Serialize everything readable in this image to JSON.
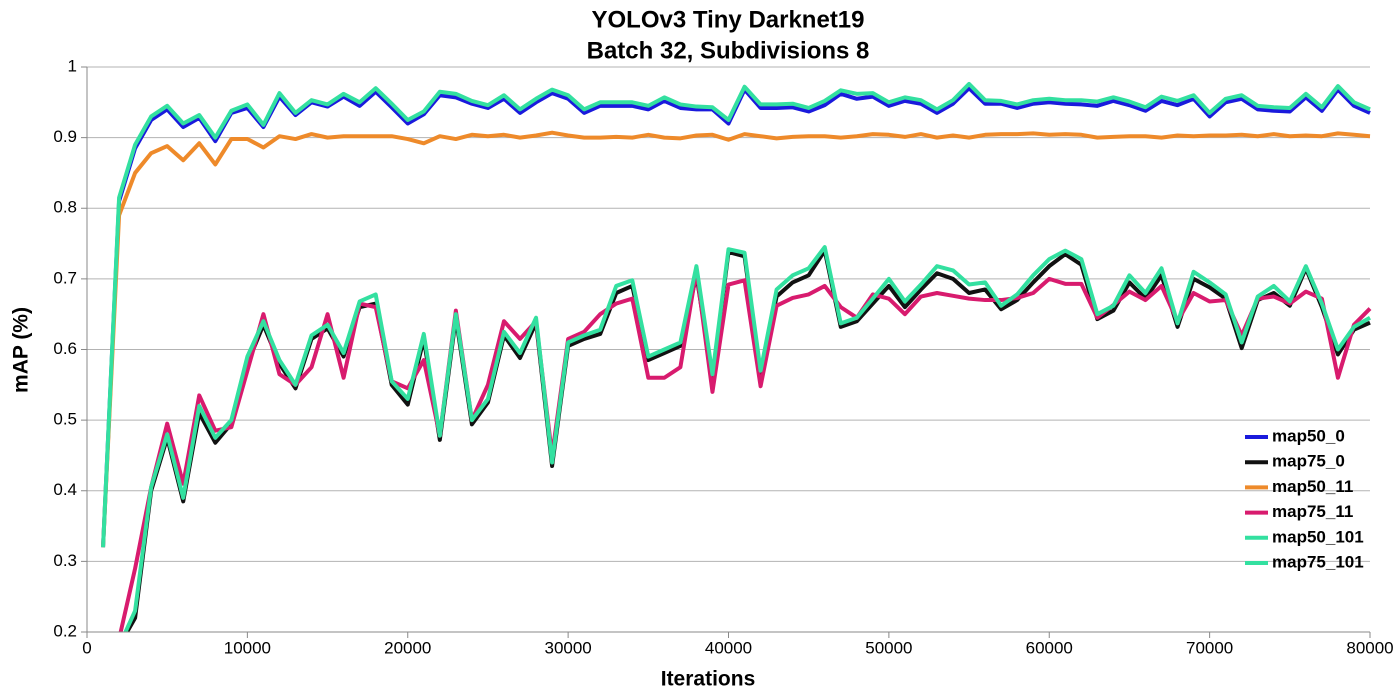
{
  "chart_data": {
    "type": "line",
    "title": "YOLOv3 Tiny Darknet19",
    "subtitle": "Batch 32, Subdivisions 8",
    "x_label": "Iterations",
    "y_label": "mAP (%)",
    "xlim": [
      0,
      80000
    ],
    "xticks": [
      0,
      10000,
      20000,
      30000,
      40000,
      50000,
      60000,
      70000,
      80000
    ],
    "ylim": [
      0.2,
      1
    ],
    "yticks": [
      0.2,
      0.3,
      0.4,
      0.5,
      0.6,
      0.7,
      0.8,
      0.9,
      1
    ],
    "grid": true,
    "legend": "right",
    "x": [
      1000,
      2000,
      3000,
      4000,
      5000,
      6000,
      7000,
      8000,
      9000,
      10000,
      11000,
      12000,
      13000,
      14000,
      15000,
      16000,
      17000,
      18000,
      19000,
      20000,
      21000,
      22000,
      23000,
      24000,
      25000,
      26000,
      27000,
      28000,
      29000,
      30000,
      31000,
      32000,
      33000,
      34000,
      35000,
      36000,
      37000,
      38000,
      39000,
      40000,
      41000,
      42000,
      43000,
      44000,
      45000,
      46000,
      47000,
      48000,
      49000,
      50000,
      51000,
      52000,
      53000,
      54000,
      55000,
      56000,
      57000,
      58000,
      59000,
      60000,
      61000,
      62000,
      63000,
      64000,
      65000,
      66000,
      67000,
      68000,
      69000,
      70000,
      71000,
      72000,
      73000,
      74000,
      75000,
      76000,
      77000,
      78000,
      79000,
      80000
    ],
    "series": [
      {
        "name": "map50_0",
        "color": "#1a1adc",
        "values": [
          0.32,
          0.81,
          0.885,
          0.925,
          0.94,
          0.915,
          0.928,
          0.895,
          0.935,
          0.942,
          0.915,
          0.958,
          0.932,
          0.95,
          0.944,
          0.958,
          0.945,
          0.965,
          0.943,
          0.92,
          0.933,
          0.96,
          0.957,
          0.948,
          0.942,
          0.955,
          0.935,
          0.95,
          0.963,
          0.955,
          0.935,
          0.945,
          0.945,
          0.945,
          0.94,
          0.952,
          0.942,
          0.94,
          0.94,
          0.92,
          0.968,
          0.942,
          0.942,
          0.943,
          0.937,
          0.946,
          0.962,
          0.955,
          0.958,
          0.945,
          0.952,
          0.948,
          0.935,
          0.948,
          0.97,
          0.948,
          0.948,
          0.942,
          0.948,
          0.95,
          0.948,
          0.947,
          0.945,
          0.952,
          0.946,
          0.938,
          0.952,
          0.946,
          0.955,
          0.93,
          0.95,
          0.955,
          0.94,
          0.938,
          0.937,
          0.957,
          0.938,
          0.968,
          0.945,
          0.935
        ]
      },
      {
        "name": "map75_0",
        "color": "#111111",
        "values": [
          null,
          0.18,
          0.22,
          0.4,
          0.475,
          0.385,
          0.51,
          0.468,
          0.495,
          0.58,
          0.635,
          0.58,
          0.545,
          0.615,
          0.63,
          0.59,
          0.66,
          0.665,
          0.55,
          0.522,
          0.615,
          0.472,
          0.645,
          0.494,
          0.525,
          0.62,
          0.588,
          0.638,
          0.435,
          0.605,
          0.615,
          0.622,
          0.68,
          0.69,
          0.585,
          0.595,
          0.605,
          0.705,
          0.56,
          0.738,
          0.732,
          0.565,
          0.675,
          0.695,
          0.705,
          0.74,
          0.632,
          0.64,
          0.665,
          0.69,
          0.66,
          0.685,
          0.708,
          0.7,
          0.68,
          0.685,
          0.657,
          0.67,
          0.695,
          0.718,
          0.735,
          0.72,
          0.643,
          0.655,
          0.695,
          0.672,
          0.705,
          0.632,
          0.7,
          0.688,
          0.672,
          0.602,
          0.67,
          0.68,
          0.662,
          0.715,
          0.66,
          0.593,
          0.628,
          0.638
        ]
      },
      {
        "name": "map50_11",
        "color": "#ee8a2a",
        "values": [
          0.32,
          0.79,
          0.85,
          0.878,
          0.888,
          0.868,
          0.892,
          0.862,
          0.898,
          0.898,
          0.886,
          0.902,
          0.898,
          0.905,
          0.9,
          0.902,
          0.902,
          0.902,
          0.902,
          0.898,
          0.892,
          0.902,
          0.898,
          0.904,
          0.902,
          0.904,
          0.9,
          0.903,
          0.907,
          0.903,
          0.9,
          0.9,
          0.901,
          0.9,
          0.904,
          0.9,
          0.899,
          0.903,
          0.904,
          0.897,
          0.905,
          0.902,
          0.899,
          0.901,
          0.902,
          0.902,
          0.9,
          0.902,
          0.905,
          0.904,
          0.901,
          0.905,
          0.9,
          0.903,
          0.9,
          0.904,
          0.905,
          0.905,
          0.906,
          0.904,
          0.905,
          0.904,
          0.9,
          0.901,
          0.902,
          0.902,
          0.9,
          0.903,
          0.902,
          0.903,
          0.903,
          0.904,
          0.902,
          0.905,
          0.902,
          0.903,
          0.902,
          0.906,
          0.904,
          0.902
        ]
      },
      {
        "name": "map75_11",
        "color": "#d81b6e",
        "values": [
          null,
          0.19,
          0.29,
          0.405,
          0.495,
          0.41,
          0.535,
          0.485,
          0.49,
          0.57,
          0.65,
          0.565,
          0.55,
          0.575,
          0.65,
          0.56,
          0.665,
          0.66,
          0.555,
          0.545,
          0.585,
          0.478,
          0.655,
          0.5,
          0.55,
          0.64,
          0.615,
          0.64,
          0.45,
          0.615,
          0.625,
          0.65,
          0.665,
          0.672,
          0.56,
          0.56,
          0.575,
          0.712,
          0.54,
          0.692,
          0.698,
          0.548,
          0.662,
          0.673,
          0.678,
          0.69,
          0.66,
          0.645,
          0.678,
          0.672,
          0.65,
          0.675,
          0.68,
          0.676,
          0.672,
          0.67,
          0.67,
          0.673,
          0.68,
          0.7,
          0.693,
          0.693,
          0.645,
          0.663,
          0.682,
          0.67,
          0.69,
          0.64,
          0.68,
          0.668,
          0.67,
          0.62,
          0.672,
          0.675,
          0.665,
          0.682,
          0.672,
          0.56,
          0.635,
          0.658
        ]
      },
      {
        "name": "map50_101",
        "color": "#33e0a0",
        "values": [
          0.32,
          0.815,
          0.89,
          0.93,
          0.945,
          0.92,
          0.932,
          0.9,
          0.938,
          0.947,
          0.918,
          0.963,
          0.935,
          0.953,
          0.947,
          0.962,
          0.95,
          0.97,
          0.948,
          0.925,
          0.937,
          0.965,
          0.962,
          0.952,
          0.946,
          0.96,
          0.94,
          0.955,
          0.968,
          0.96,
          0.94,
          0.95,
          0.95,
          0.95,
          0.945,
          0.957,
          0.947,
          0.944,
          0.943,
          0.925,
          0.972,
          0.947,
          0.947,
          0.948,
          0.942,
          0.952,
          0.967,
          0.962,
          0.963,
          0.95,
          0.957,
          0.953,
          0.94,
          0.953,
          0.976,
          0.953,
          0.952,
          0.947,
          0.953,
          0.955,
          0.953,
          0.953,
          0.951,
          0.957,
          0.951,
          0.943,
          0.958,
          0.952,
          0.96,
          0.935,
          0.955,
          0.96,
          0.945,
          0.943,
          0.942,
          0.962,
          0.943,
          0.973,
          0.95,
          0.94
        ]
      },
      {
        "name": "map75_101",
        "color": "#33e0a0",
        "values": [
          null,
          0.18,
          0.23,
          0.405,
          0.48,
          0.39,
          0.52,
          0.475,
          0.5,
          0.59,
          0.64,
          0.585,
          0.55,
          0.62,
          0.635,
          0.595,
          0.668,
          0.678,
          0.555,
          0.53,
          0.622,
          0.478,
          0.65,
          0.5,
          0.53,
          0.625,
          0.595,
          0.645,
          0.44,
          0.61,
          0.62,
          0.628,
          0.69,
          0.698,
          0.59,
          0.6,
          0.61,
          0.718,
          0.565,
          0.742,
          0.737,
          0.57,
          0.685,
          0.705,
          0.715,
          0.745,
          0.637,
          0.645,
          0.672,
          0.7,
          0.668,
          0.692,
          0.718,
          0.712,
          0.692,
          0.695,
          0.662,
          0.678,
          0.705,
          0.728,
          0.74,
          0.728,
          0.65,
          0.662,
          0.705,
          0.68,
          0.715,
          0.637,
          0.71,
          0.695,
          0.678,
          0.61,
          0.675,
          0.69,
          0.668,
          0.718,
          0.665,
          0.6,
          0.632,
          0.645
        ]
      }
    ]
  }
}
